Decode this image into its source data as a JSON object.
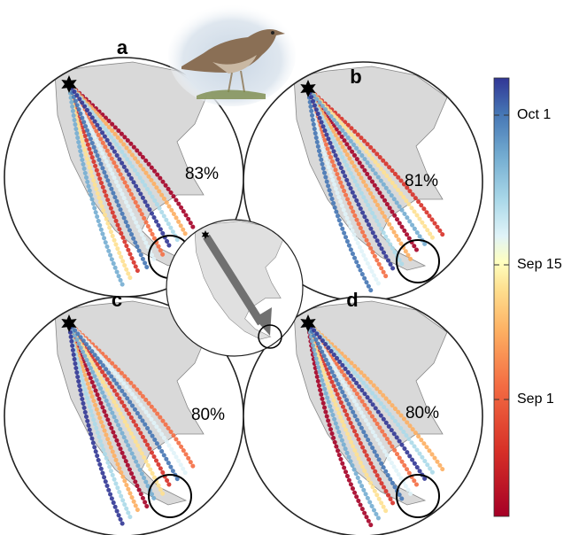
{
  "panels": [
    {
      "label": "a",
      "percent": "83%"
    },
    {
      "label": "b",
      "percent": "81%"
    },
    {
      "label": "c",
      "percent": "80%"
    },
    {
      "label": "d",
      "percent": "80%"
    }
  ],
  "colorbar": {
    "ticks": [
      "Oct 1",
      "Sep 15",
      "Sep 1"
    ]
  }
}
